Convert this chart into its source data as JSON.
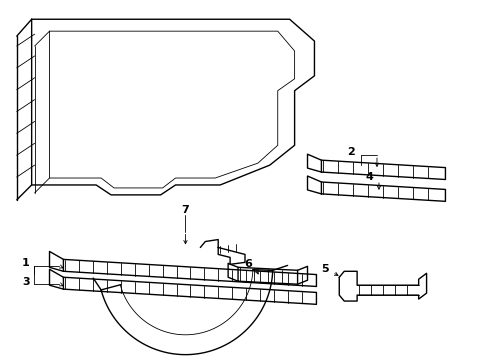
{
  "bg_color": "#ffffff",
  "line_color": "#000000",
  "lw": 1.0,
  "tlw": 0.6,
  "fs": 8
}
